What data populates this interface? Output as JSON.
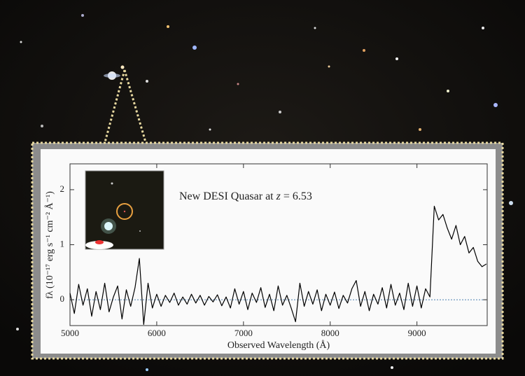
{
  "chart_data": {
    "type": "line",
    "annotation": [
      "New DESI Quasar at",
      "z",
      "= 6.53"
    ],
    "xlabel": "Observed Wavelength (Å)",
    "ylabel": "fλ (10⁻¹⁷ erg s⁻¹ cm⁻² Å⁻¹)",
    "x": [
      5000,
      5050,
      5100,
      5150,
      5200,
      5250,
      5300,
      5350,
      5400,
      5450,
      5500,
      5550,
      5600,
      5650,
      5700,
      5750,
      5800,
      5850,
      5900,
      5950,
      6000,
      6050,
      6100,
      6150,
      6200,
      6250,
      6300,
      6350,
      6400,
      6450,
      6500,
      6550,
      6600,
      6650,
      6700,
      6750,
      6800,
      6850,
      6900,
      6950,
      7000,
      7050,
      7100,
      7150,
      7200,
      7250,
      7300,
      7350,
      7400,
      7450,
      7500,
      7550,
      7600,
      7650,
      7700,
      7750,
      7800,
      7850,
      7900,
      7950,
      8000,
      8050,
      8100,
      8150,
      8200,
      8250,
      8300,
      8350,
      8400,
      8450,
      8500,
      8550,
      8600,
      8650,
      8700,
      8750,
      8800,
      8850,
      8900,
      8950,
      9000,
      9050,
      9100,
      9150,
      9200,
      9250,
      9300,
      9350,
      9400,
      9450,
      9500,
      9550,
      9600,
      9650,
      9700,
      9750,
      9800
    ],
    "series": [
      {
        "color": "#000000",
        "values": [
          0.12,
          -0.25,
          0.28,
          -0.1,
          0.2,
          -0.3,
          0.15,
          -0.18,
          0.3,
          -0.22,
          0.05,
          0.25,
          -0.35,
          0.18,
          -0.12,
          0.22,
          0.75,
          -0.45,
          0.3,
          -0.15,
          0.1,
          -0.12,
          0.08,
          -0.05,
          0.12,
          -0.1,
          0.05,
          -0.08,
          0.1,
          -0.06,
          0.08,
          -0.1,
          0.06,
          -0.04,
          0.09,
          -0.11,
          0.05,
          -0.15,
          0.2,
          -0.08,
          0.15,
          -0.18,
          0.12,
          -0.05,
          0.22,
          -0.14,
          0.1,
          -0.2,
          0.25,
          -0.1,
          0.08,
          -0.15,
          -0.4,
          0.3,
          -0.12,
          0.15,
          -0.08,
          0.18,
          -0.2,
          0.1,
          -0.1,
          0.14,
          -0.16,
          0.08,
          -0.06,
          0.2,
          0.35,
          -0.12,
          0.15,
          -0.2,
          0.1,
          -0.08,
          0.22,
          -0.15,
          0.28,
          -0.1,
          0.12,
          -0.18,
          0.3,
          -0.12,
          0.25,
          -0.15,
          0.2,
          0.05,
          1.7,
          1.45,
          1.55,
          1.3,
          1.1,
          1.35,
          1.0,
          1.15,
          0.85,
          0.95,
          0.7,
          0.6,
          0.65
        ]
      }
    ],
    "xlim": [
      5000,
      9810
    ],
    "ylim": [
      -0.47,
      2.47
    ],
    "xticks": [
      5000,
      6000,
      7000,
      8000,
      9000
    ],
    "yticks": [
      0,
      1,
      2
    ]
  }
}
